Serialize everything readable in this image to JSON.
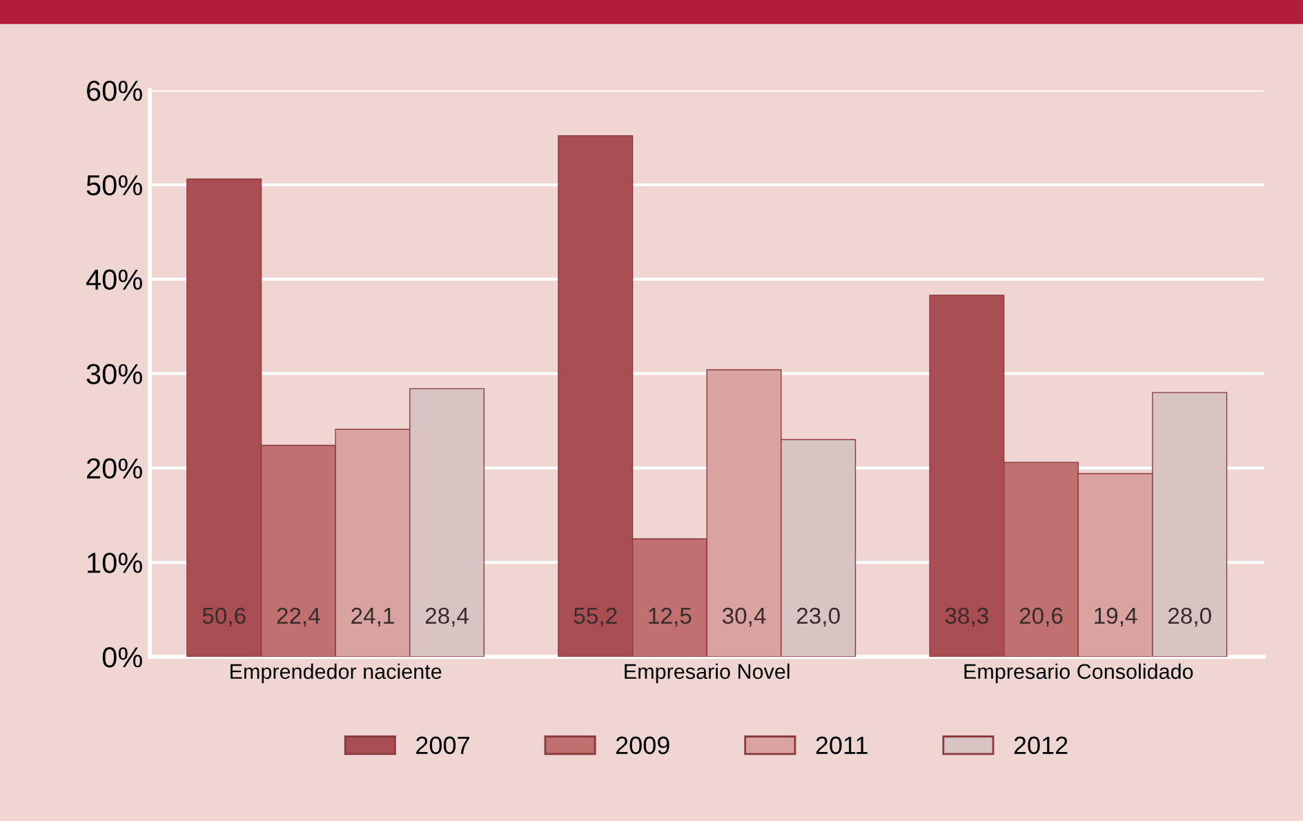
{
  "chart_data": {
    "type": "bar",
    "categories": [
      "Emprendedor naciente",
      "Empresario Novel",
      "Empresario Consolidado"
    ],
    "series": [
      {
        "name": "2007",
        "color": "#a84e52",
        "values": [
          50.6,
          55.2,
          38.3
        ],
        "value_labels": [
          "50,6",
          "55,2",
          "38,3"
        ]
      },
      {
        "name": "2009",
        "color": "#c0706f",
        "values": [
          22.4,
          12.5,
          20.6
        ],
        "value_labels": [
          "22,4",
          "12,5",
          "20,6"
        ]
      },
      {
        "name": "2011",
        "color": "#d9a3a0",
        "values": [
          24.1,
          30.4,
          19.4
        ],
        "value_labels": [
          "24,1",
          "30,4",
          "19,4"
        ]
      },
      {
        "name": "2012",
        "color": "#d8c4c2",
        "values": [
          28.4,
          23.0,
          28.0
        ],
        "value_labels": [
          "28,4",
          "23,0",
          "28,0"
        ]
      }
    ],
    "ylim": [
      0,
      60
    ],
    "yticks": [
      {
        "value": 0,
        "label": "0%"
      },
      {
        "value": 10,
        "label": "10%"
      },
      {
        "value": 20,
        "label": "20%"
      },
      {
        "value": 30,
        "label": "30%"
      },
      {
        "value": 40,
        "label": "40%"
      },
      {
        "value": 50,
        "label": "50%"
      },
      {
        "value": 60,
        "label": "60%"
      }
    ],
    "grid": "y",
    "legend": "bottom"
  }
}
